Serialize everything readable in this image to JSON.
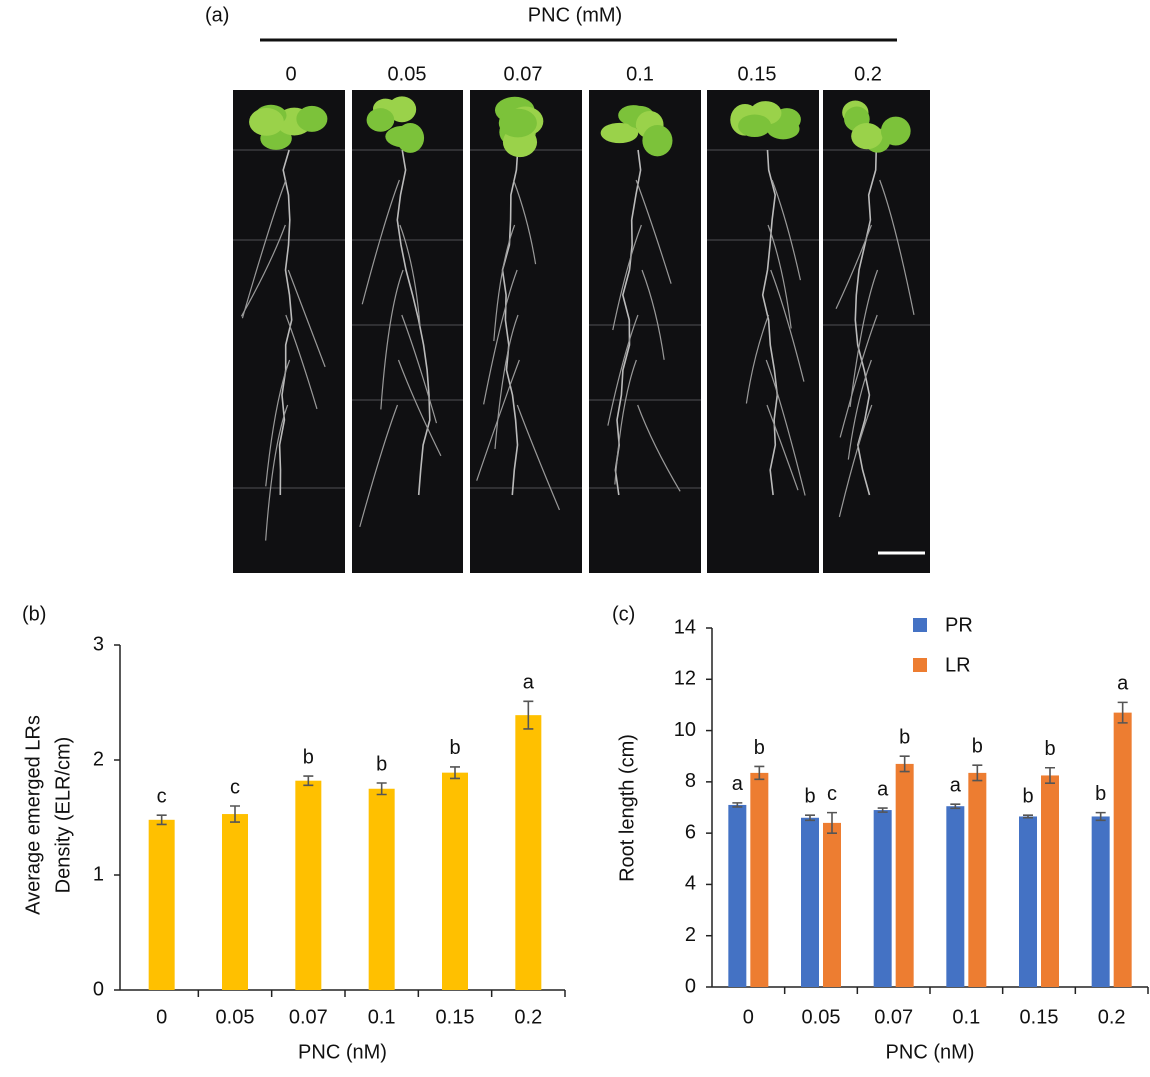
{
  "photo_panel": {
    "panel_label": "(a)",
    "header": "PNC (mM)",
    "concentrations": [
      "0",
      "0.05",
      "0.07",
      "0.1",
      "0.15",
      "0.2"
    ]
  },
  "chart_data": [
    {
      "type": "bar",
      "panel_label": "(b)",
      "ylabel": [
        "Average emerged LRs",
        "Density (ELR/cm)"
      ],
      "xlabel": "PNC (nM)",
      "categories": [
        "0",
        "0.05",
        "0.07",
        "0.1",
        "0.15",
        "0.2"
      ],
      "series": [
        {
          "name": "ELR density",
          "color": "#ffc000",
          "values": [
            1.48,
            1.53,
            1.82,
            1.75,
            1.89,
            2.39
          ],
          "errors": [
            0.04,
            0.07,
            0.04,
            0.05,
            0.05,
            0.12
          ],
          "letters": [
            "c",
            "c",
            "b",
            "b",
            "b",
            "a"
          ]
        }
      ],
      "ylim": [
        0,
        3
      ],
      "yticks": [
        0,
        1,
        2,
        3
      ],
      "legend": false
    },
    {
      "type": "bar",
      "panel_label": "(c)",
      "ylabel": [
        "Root length (cm)"
      ],
      "xlabel": "PNC (nM)",
      "categories": [
        "0",
        "0.05",
        "0.07",
        "0.1",
        "0.15",
        "0.2"
      ],
      "series": [
        {
          "name": "PR",
          "color": "#4472c4",
          "values": [
            7.1,
            6.6,
            6.9,
            7.05,
            6.65,
            6.65
          ],
          "errors": [
            0.08,
            0.1,
            0.08,
            0.08,
            0.05,
            0.15
          ],
          "letters": [
            "a",
            "b",
            "a",
            "a",
            "b",
            "b"
          ]
        },
        {
          "name": "LR",
          "color": "#ed7d31",
          "values": [
            8.35,
            6.4,
            8.7,
            8.35,
            8.25,
            10.7
          ],
          "errors": [
            0.25,
            0.4,
            0.3,
            0.3,
            0.3,
            0.4
          ],
          "letters": [
            "b",
            "c",
            "b",
            "b",
            "b",
            "a"
          ]
        }
      ],
      "ylim": [
        0,
        14
      ],
      "yticks": [
        0,
        2,
        4,
        6,
        8,
        10,
        12,
        14
      ],
      "legend": "upper center"
    }
  ]
}
